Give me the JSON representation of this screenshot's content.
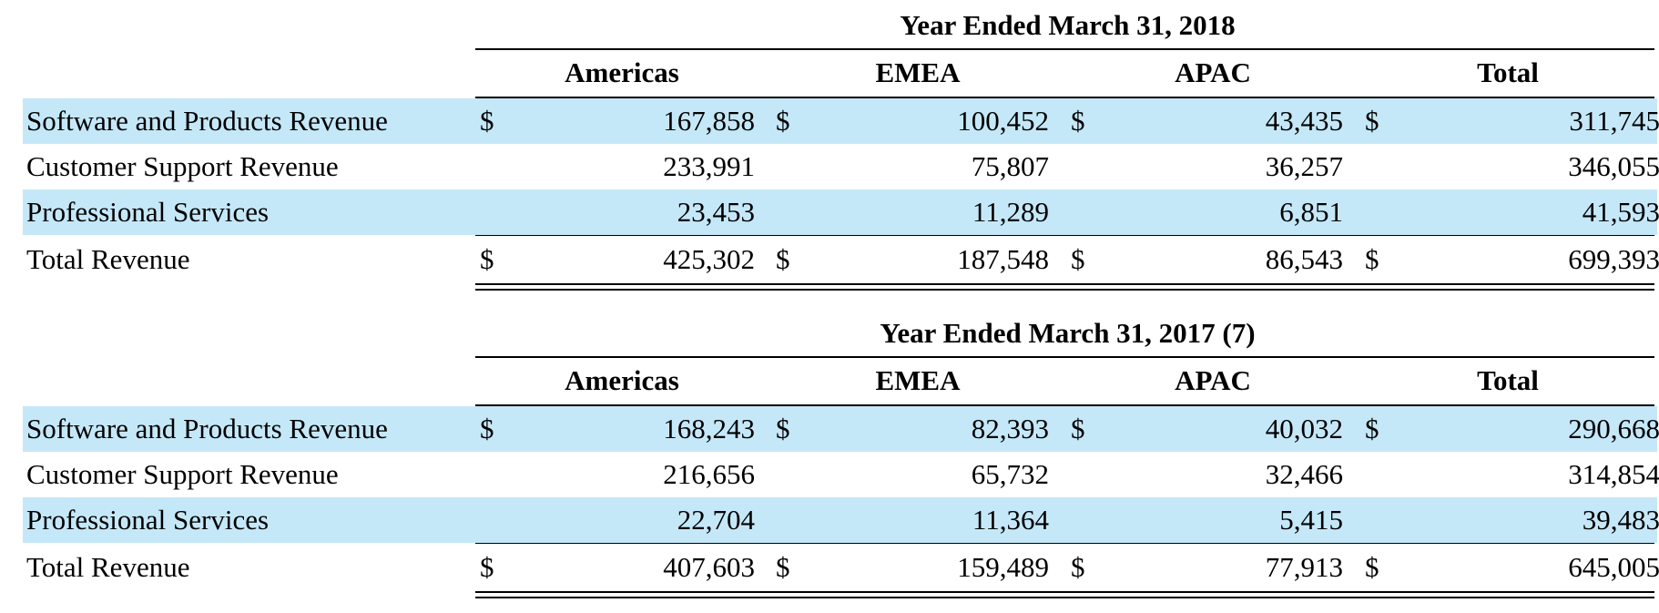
{
  "columns": [
    "Americas",
    "EMEA",
    "APAC",
    "Total"
  ],
  "sections": [
    {
      "title": "Year Ended March 31, 2018",
      "rows": [
        {
          "label": "Software and Products Revenue",
          "dollar": "$",
          "values": [
            "167,858",
            "100,452",
            "43,435",
            "311,745"
          ]
        },
        {
          "label": "Customer Support Revenue",
          "dollar": "",
          "values": [
            "233,991",
            "75,807",
            "36,257",
            "346,055"
          ]
        },
        {
          "label": "Professional Services",
          "dollar": "",
          "values": [
            "23,453",
            "11,289",
            "6,851",
            "41,593"
          ]
        },
        {
          "label": "Total Revenue",
          "dollar": "$",
          "values": [
            "425,302",
            "187,548",
            "86,543",
            "699,393"
          ]
        }
      ]
    },
    {
      "title": "Year Ended March 31, 2017 (7)",
      "rows": [
        {
          "label": "Software and Products Revenue",
          "dollar": "$",
          "values": [
            "168,243",
            "82,393",
            "40,032",
            "290,668"
          ]
        },
        {
          "label": "Customer Support Revenue",
          "dollar": "",
          "values": [
            "216,656",
            "65,732",
            "32,466",
            "314,854"
          ]
        },
        {
          "label": "Professional Services",
          "dollar": "",
          "values": [
            "22,704",
            "11,364",
            "5,415",
            "39,483"
          ]
        },
        {
          "label": "Total Revenue",
          "dollar": "$",
          "values": [
            "407,603",
            "159,489",
            "77,913",
            "645,005"
          ]
        }
      ]
    }
  ],
  "colors": {
    "row_shading": "#c5e8f9"
  }
}
